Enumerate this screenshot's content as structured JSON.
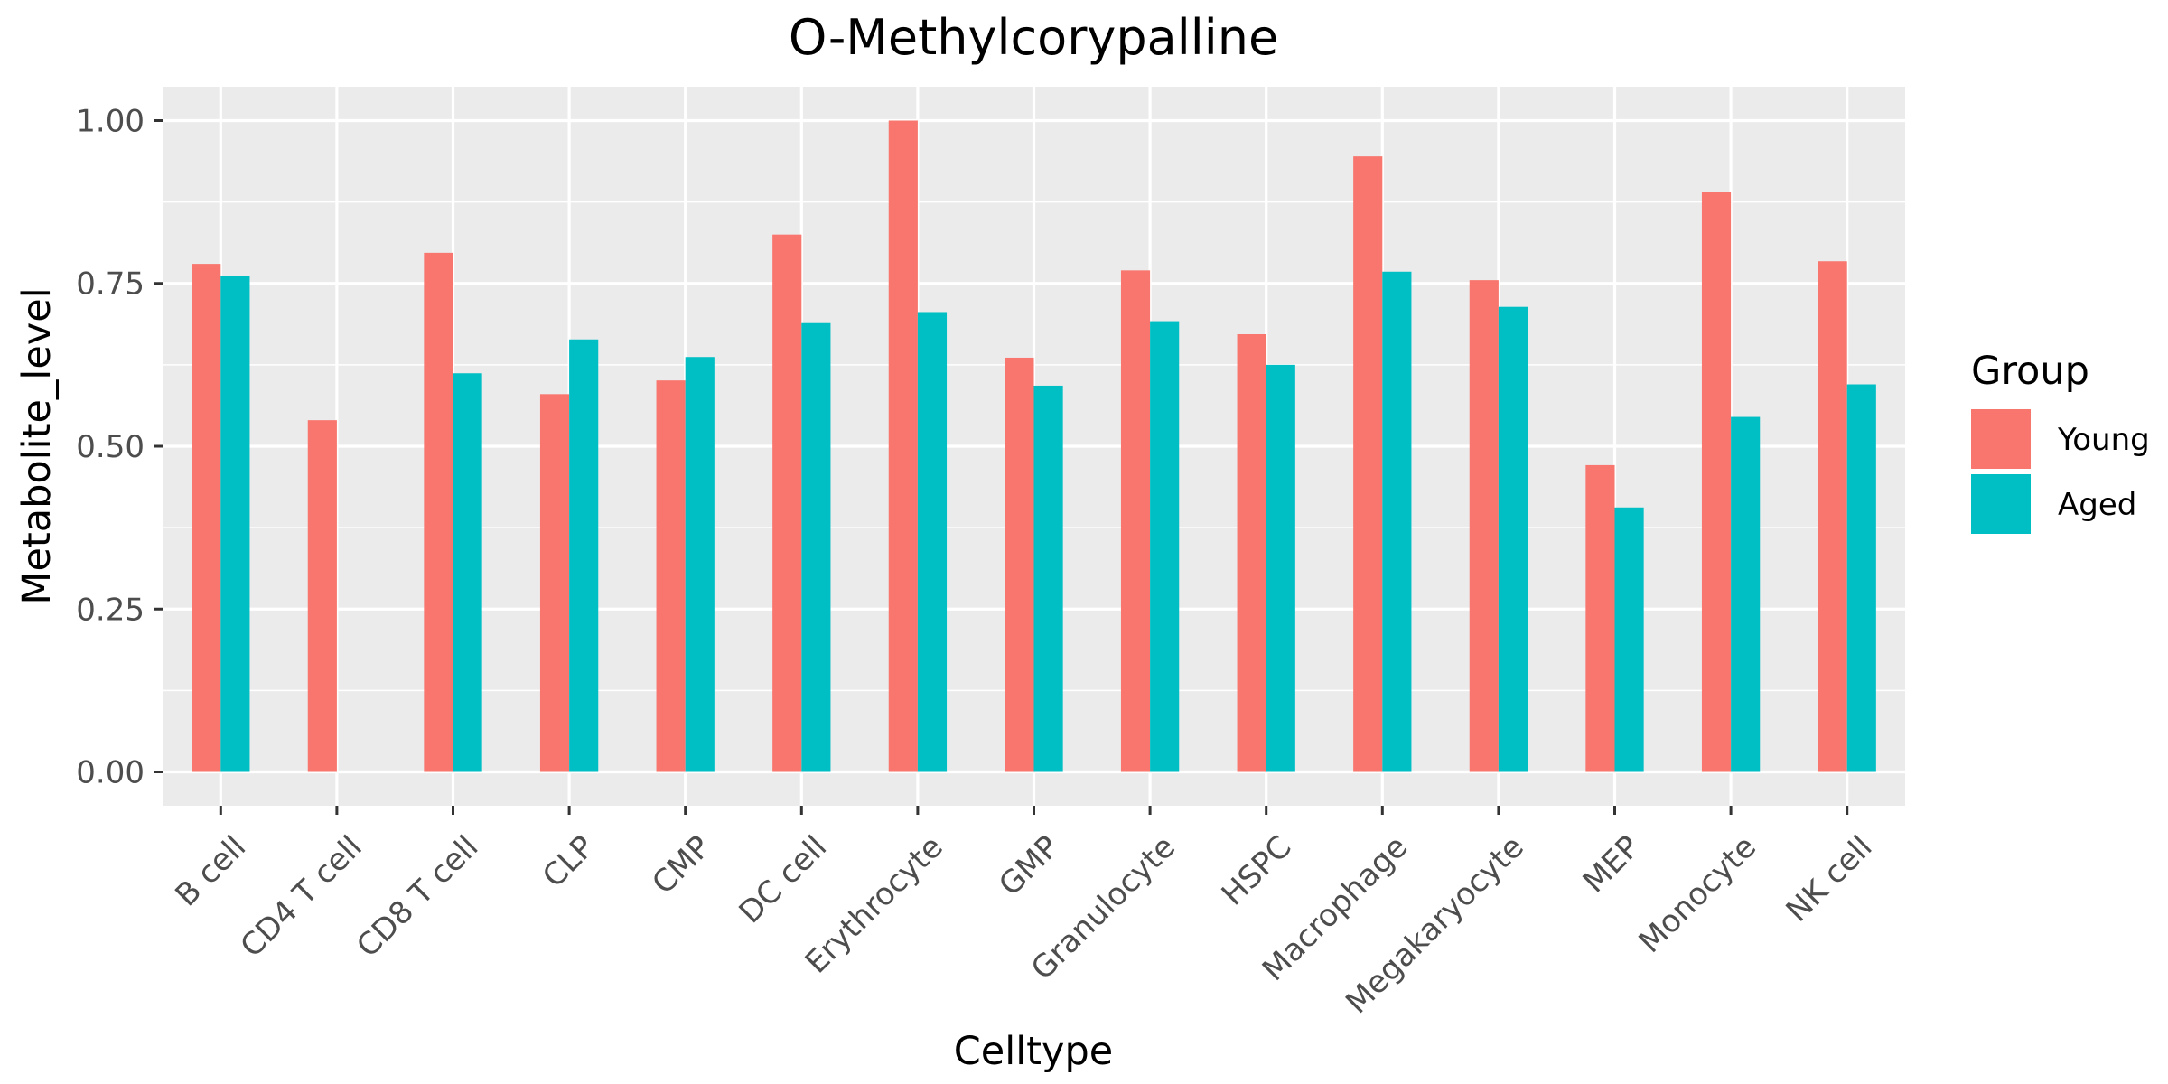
{
  "chart_data": {
    "type": "bar",
    "title": "O-Methylcorypalline",
    "xlabel": "Celltype",
    "ylabel": "Metabolite_level",
    "categories": [
      "B cell",
      "CD4 T cell",
      "CD8 T cell",
      "CLP",
      "CMP",
      "DC cell",
      "Erythrocyte",
      "GMP",
      "Granulocyte",
      "HSPC",
      "Macrophage",
      "Megakaryocyte",
      "MEP",
      "Monocyte",
      "NK cell"
    ],
    "series": [
      {
        "name": "Young",
        "color": "#F8766D",
        "values": [
          0.78,
          0.54,
          0.797,
          0.58,
          0.601,
          0.825,
          1.0,
          0.636,
          0.77,
          0.672,
          0.945,
          0.755,
          0.471,
          0.891,
          0.784
        ]
      },
      {
        "name": "Aged",
        "color": "#00BFC4",
        "values": [
          0.762,
          null,
          0.612,
          0.664,
          0.637,
          0.689,
          0.706,
          0.593,
          0.692,
          0.625,
          0.768,
          0.714,
          0.406,
          0.545,
          0.595
        ]
      }
    ],
    "ylim": [
      -0.052,
      1.052
    ],
    "yticks": [
      0.0,
      0.25,
      0.5,
      0.75,
      1.0
    ],
    "ytick_labels": [
      "0.00",
      "0.25",
      "0.50",
      "0.75",
      "1.00"
    ],
    "grid": true,
    "legend": {
      "title": "Group",
      "placement": "right"
    },
    "panel_background": "#EBEBEB",
    "grid_color": "#FFFFFF"
  }
}
